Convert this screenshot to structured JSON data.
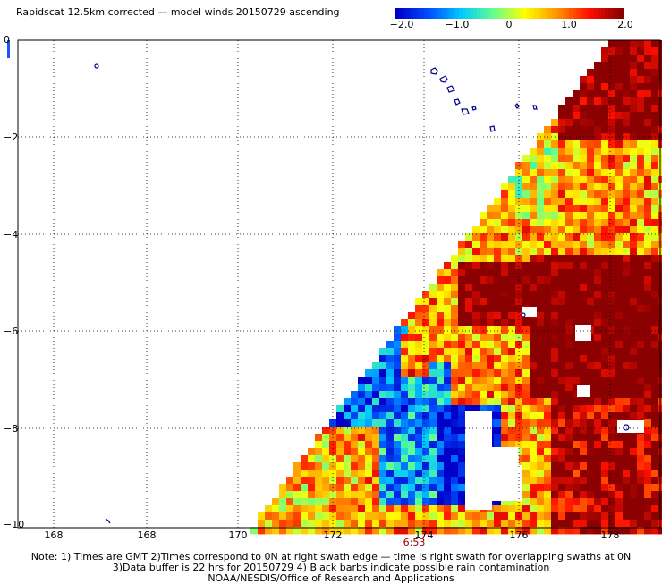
{
  "title": "Rapidscat 12.5km corrected — model winds 20150729 ascending",
  "colorbar": {
    "ticks": [
      "−2.0",
      "−1.0",
      "0",
      "1.0",
      "2.0"
    ],
    "colors": [
      "#0000c8",
      "#0050ff",
      "#00c8ff",
      "#60ff90",
      "#ffff00",
      "#ff9000",
      "#ff1000",
      "#8b0000"
    ]
  },
  "map": {
    "y_labels": [
      "0",
      "−2",
      "−4",
      "−6",
      "−8",
      "−10"
    ],
    "x_labels": [
      "168",
      "168",
      "170",
      "172",
      "174",
      "176",
      "178"
    ],
    "time_label": "6:53"
  },
  "notes": [
    "Note: 1) Times are GMT 2)Times correspond to 0N at right swath edge — time is right swath for overlapping swaths at 0N",
    "3)Data buffer is 22 hrs for 20150729 4) Black barbs indicate possible rain contamination",
    "NOAA/NESDIS/Office of Research and Applications"
  ]
}
